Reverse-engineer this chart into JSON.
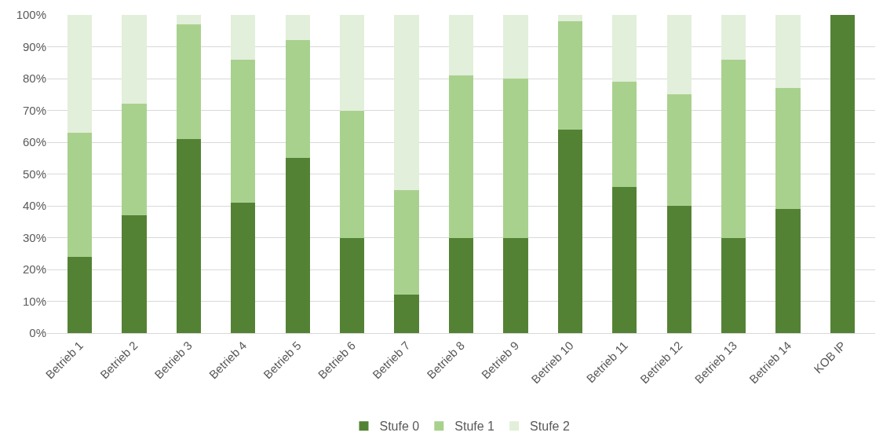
{
  "chart_data": {
    "type": "bar",
    "stacked": true,
    "categories": [
      "Betrieb 1",
      "Betrieb 2",
      "Betrieb 3",
      "Betrieb 4",
      "Betrieb 5",
      "Betrieb 6",
      "Betrieb 7",
      "Betrieb 8",
      "Betrieb 9",
      "Betrieb 10",
      "Betrieb 11",
      "Betrieb 12",
      "Betrieb 13",
      "Betrieb 14",
      "KOB IP"
    ],
    "series": [
      {
        "name": "Stufe 0",
        "color": "#548235",
        "values": [
          24,
          37,
          61,
          41,
          55,
          30,
          12,
          30,
          30,
          64,
          46,
          40,
          30,
          39,
          100
        ]
      },
      {
        "name": "Stufe 1",
        "color": "#a9d18e",
        "values": [
          39,
          35,
          36,
          45,
          37,
          40,
          33,
          51,
          50,
          34,
          33,
          35,
          56,
          38,
          0
        ]
      },
      {
        "name": "Stufe 2",
        "color": "#e2efda",
        "values": [
          37,
          28,
          3,
          14,
          8,
          30,
          55,
          19,
          20,
          2,
          21,
          25,
          14,
          23,
          0
        ]
      }
    ],
    "ylim": [
      0,
      100
    ],
    "yticks": [
      {
        "value": 0,
        "label": "0%"
      },
      {
        "value": 10,
        "label": "10%"
      },
      {
        "value": 20,
        "label": "20%"
      },
      {
        "value": 30,
        "label": "30%"
      },
      {
        "value": 40,
        "label": "40%"
      },
      {
        "value": 50,
        "label": "50%"
      },
      {
        "value": 60,
        "label": "60%"
      },
      {
        "value": 70,
        "label": "70%"
      },
      {
        "value": 80,
        "label": "80%"
      },
      {
        "value": 90,
        "label": "90%"
      },
      {
        "value": 100,
        "label": "100%"
      }
    ],
    "grid": "y",
    "legend": "bottom"
  }
}
